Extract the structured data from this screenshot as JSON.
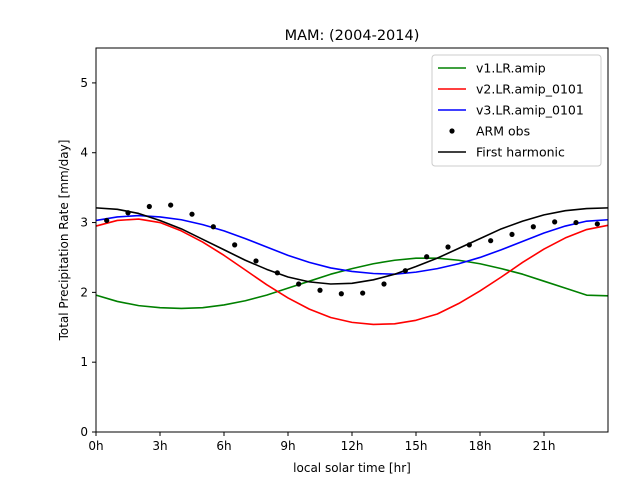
{
  "chart_data": {
    "type": "line",
    "title": "MAM: (2004-2014)",
    "xlabel": "local solar time [hr]",
    "ylabel": "Total Precipitation Rate [mm/day]",
    "xlim": [
      0,
      24
    ],
    "ylim": [
      0,
      5.5
    ],
    "x_ticks": [
      {
        "value": 0,
        "label": "0h"
      },
      {
        "value": 3,
        "label": "3h"
      },
      {
        "value": 6,
        "label": "6h"
      },
      {
        "value": 9,
        "label": "9h"
      },
      {
        "value": 12,
        "label": "12h"
      },
      {
        "value": 15,
        "label": "15h"
      },
      {
        "value": 18,
        "label": "18h"
      },
      {
        "value": 21,
        "label": "21h"
      }
    ],
    "y_ticks": [
      {
        "value": 0,
        "label": "0"
      },
      {
        "value": 1,
        "label": "1"
      },
      {
        "value": 2,
        "label": "2"
      },
      {
        "value": 3,
        "label": "3"
      },
      {
        "value": 4,
        "label": "4"
      },
      {
        "value": 5,
        "label": "5"
      }
    ],
    "grid": false,
    "legend_position": "top-right",
    "x": [
      0,
      1,
      2,
      3,
      4,
      5,
      6,
      7,
      8,
      9,
      10,
      11,
      12,
      13,
      14,
      15,
      16,
      17,
      18,
      19,
      20,
      21,
      22,
      23,
      24
    ],
    "series": [
      {
        "name": "v1.LR.amip",
        "kind": "line",
        "color": "#008000",
        "values": [
          1.96,
          1.87,
          1.81,
          1.78,
          1.77,
          1.78,
          1.82,
          1.88,
          1.96,
          2.06,
          2.16,
          2.26,
          2.34,
          2.41,
          2.46,
          2.49,
          2.49,
          2.46,
          2.41,
          2.34,
          2.26,
          2.16,
          2.06,
          1.96,
          1.95
        ]
      },
      {
        "name": "v2.LR.amip_0101",
        "kind": "line",
        "color": "#ff0000",
        "values": [
          2.95,
          3.03,
          3.05,
          3.0,
          2.88,
          2.72,
          2.53,
          2.32,
          2.11,
          1.92,
          1.76,
          1.64,
          1.57,
          1.54,
          1.55,
          1.6,
          1.69,
          1.84,
          2.02,
          2.22,
          2.43,
          2.62,
          2.78,
          2.9,
          2.96
        ]
      },
      {
        "name": "v3.LR.amip_0101",
        "kind": "line",
        "color": "#0000ff",
        "values": [
          3.03,
          3.08,
          3.1,
          3.08,
          3.04,
          2.97,
          2.88,
          2.77,
          2.65,
          2.53,
          2.43,
          2.35,
          2.3,
          2.27,
          2.26,
          2.29,
          2.34,
          2.41,
          2.5,
          2.61,
          2.73,
          2.85,
          2.95,
          3.02,
          3.04
        ]
      },
      {
        "name": "ARM obs",
        "kind": "points",
        "color": "#000000",
        "x": [
          0.5,
          1.5,
          2.5,
          3.5,
          4.5,
          5.5,
          6.5,
          7.5,
          8.5,
          9.5,
          10.5,
          11.5,
          12.5,
          13.5,
          14.5,
          15.5,
          16.5,
          17.5,
          18.5,
          19.5,
          20.5,
          21.5,
          22.5,
          23.5
        ],
        "values": [
          3.03,
          3.14,
          3.23,
          3.25,
          3.12,
          2.94,
          2.68,
          2.45,
          2.28,
          2.12,
          2.03,
          1.98,
          1.99,
          2.12,
          2.31,
          2.51,
          2.65,
          2.68,
          2.74,
          2.83,
          2.94,
          3.01,
          3.0,
          2.98
        ]
      },
      {
        "name": "First harmonic",
        "kind": "line",
        "color": "#000000",
        "values": [
          3.21,
          3.19,
          3.13,
          3.03,
          2.91,
          2.76,
          2.61,
          2.46,
          2.33,
          2.22,
          2.15,
          2.12,
          2.13,
          2.18,
          2.26,
          2.37,
          2.49,
          2.63,
          2.77,
          2.91,
          3.02,
          3.11,
          3.17,
          3.2,
          3.21
        ]
      }
    ]
  }
}
